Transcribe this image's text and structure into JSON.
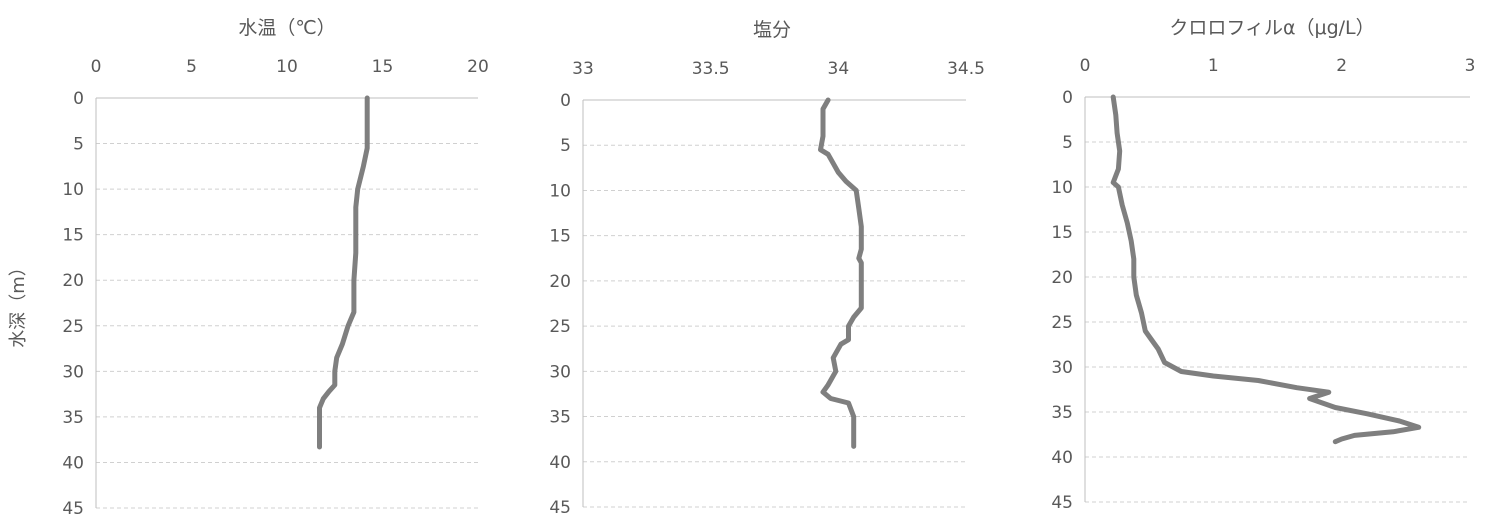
{
  "chart_data": [
    {
      "type": "line",
      "title": "水温（℃）",
      "ylabel": "水深（m）",
      "xlim": [
        0,
        20
      ],
      "ylim": [
        0,
        45
      ],
      "y_inverted": true,
      "x_axis_position": "top",
      "x_ticks": [
        "0",
        "5",
        "10",
        "15",
        "20"
      ],
      "y_ticks": [
        "0",
        "5",
        "10",
        "15",
        "20",
        "25",
        "30",
        "35",
        "40",
        "45"
      ],
      "grid": "horizontal-dashed",
      "series_color": "#7f7f7f",
      "series": [
        {
          "points": [
            [
              14.2,
              0
            ],
            [
              14.2,
              5.5
            ],
            [
              14.0,
              7.5
            ],
            [
              13.7,
              10
            ],
            [
              13.6,
              12
            ],
            [
              13.6,
              17
            ],
            [
              13.5,
              20
            ],
            [
              13.5,
              23.5
            ],
            [
              13.2,
              25
            ],
            [
              12.9,
              27
            ],
            [
              12.6,
              28.5
            ],
            [
              12.5,
              30
            ],
            [
              12.5,
              31.5
            ],
            [
              12.2,
              32.2
            ],
            [
              11.9,
              33
            ],
            [
              11.7,
              34
            ],
            [
              11.7,
              38.3
            ]
          ]
        }
      ]
    },
    {
      "type": "line",
      "title": "塩分",
      "ylabel": "",
      "xlim": [
        33,
        34.5
      ],
      "ylim": [
        0,
        45
      ],
      "y_inverted": true,
      "x_axis_position": "top",
      "x_ticks": [
        "33",
        "33.5",
        "34",
        "34.5"
      ],
      "y_ticks": [
        "0",
        "5",
        "10",
        "15",
        "20",
        "25",
        "30",
        "35",
        "40",
        "45"
      ],
      "grid": "horizontal-dashed",
      "series_color": "#7f7f7f",
      "series": [
        {
          "points": [
            [
              33.96,
              0
            ],
            [
              33.94,
              1
            ],
            [
              33.94,
              4
            ],
            [
              33.93,
              5.5
            ],
            [
              33.96,
              6
            ],
            [
              33.98,
              7
            ],
            [
              34.0,
              8
            ],
            [
              34.03,
              9
            ],
            [
              34.07,
              10
            ],
            [
              34.08,
              12
            ],
            [
              34.09,
              14
            ],
            [
              34.09,
              16.5
            ],
            [
              34.08,
              17.5
            ],
            [
              34.09,
              18
            ],
            [
              34.09,
              20
            ],
            [
              34.09,
              23
            ],
            [
              34.06,
              24
            ],
            [
              34.04,
              25
            ],
            [
              34.04,
              26.5
            ],
            [
              34.01,
              27
            ],
            [
              33.98,
              28.5
            ],
            [
              33.99,
              30
            ],
            [
              33.96,
              31.5
            ],
            [
              33.94,
              32.3
            ],
            [
              33.97,
              33
            ],
            [
              34.04,
              33.5
            ],
            [
              34.06,
              35
            ],
            [
              34.06,
              38.3
            ]
          ]
        }
      ]
    },
    {
      "type": "line",
      "title": "クロロフィルα（μg/L）",
      "ylabel": "",
      "xlim": [
        0,
        3
      ],
      "ylim": [
        0,
        45
      ],
      "y_inverted": true,
      "x_axis_position": "top",
      "x_ticks": [
        "0",
        "1",
        "2",
        "3"
      ],
      "y_ticks": [
        "0",
        "5",
        "10",
        "15",
        "20",
        "25",
        "30",
        "35",
        "40",
        "45"
      ],
      "grid": "horizontal-dashed",
      "series_color": "#7f7f7f",
      "series": [
        {
          "points": [
            [
              0.22,
              0
            ],
            [
              0.24,
              2
            ],
            [
              0.25,
              4
            ],
            [
              0.27,
              6
            ],
            [
              0.26,
              8
            ],
            [
              0.22,
              9.5
            ],
            [
              0.26,
              10
            ],
            [
              0.29,
              12
            ],
            [
              0.33,
              14
            ],
            [
              0.36,
              16
            ],
            [
              0.38,
              18
            ],
            [
              0.38,
              20
            ],
            [
              0.4,
              22
            ],
            [
              0.44,
              24
            ],
            [
              0.47,
              26
            ],
            [
              0.52,
              27
            ],
            [
              0.57,
              28
            ],
            [
              0.62,
              29.5
            ],
            [
              0.75,
              30.5
            ],
            [
              1.0,
              31
            ],
            [
              1.35,
              31.5
            ],
            [
              1.65,
              32.3
            ],
            [
              1.9,
              32.8
            ],
            [
              1.75,
              33.5
            ],
            [
              1.85,
              34
            ],
            [
              1.95,
              34.5
            ],
            [
              2.2,
              35.2
            ],
            [
              2.45,
              36
            ],
            [
              2.6,
              36.7
            ],
            [
              2.4,
              37.2
            ],
            [
              2.1,
              37.6
            ],
            [
              2.0,
              38.0
            ],
            [
              1.95,
              38.3
            ]
          ]
        }
      ]
    }
  ]
}
